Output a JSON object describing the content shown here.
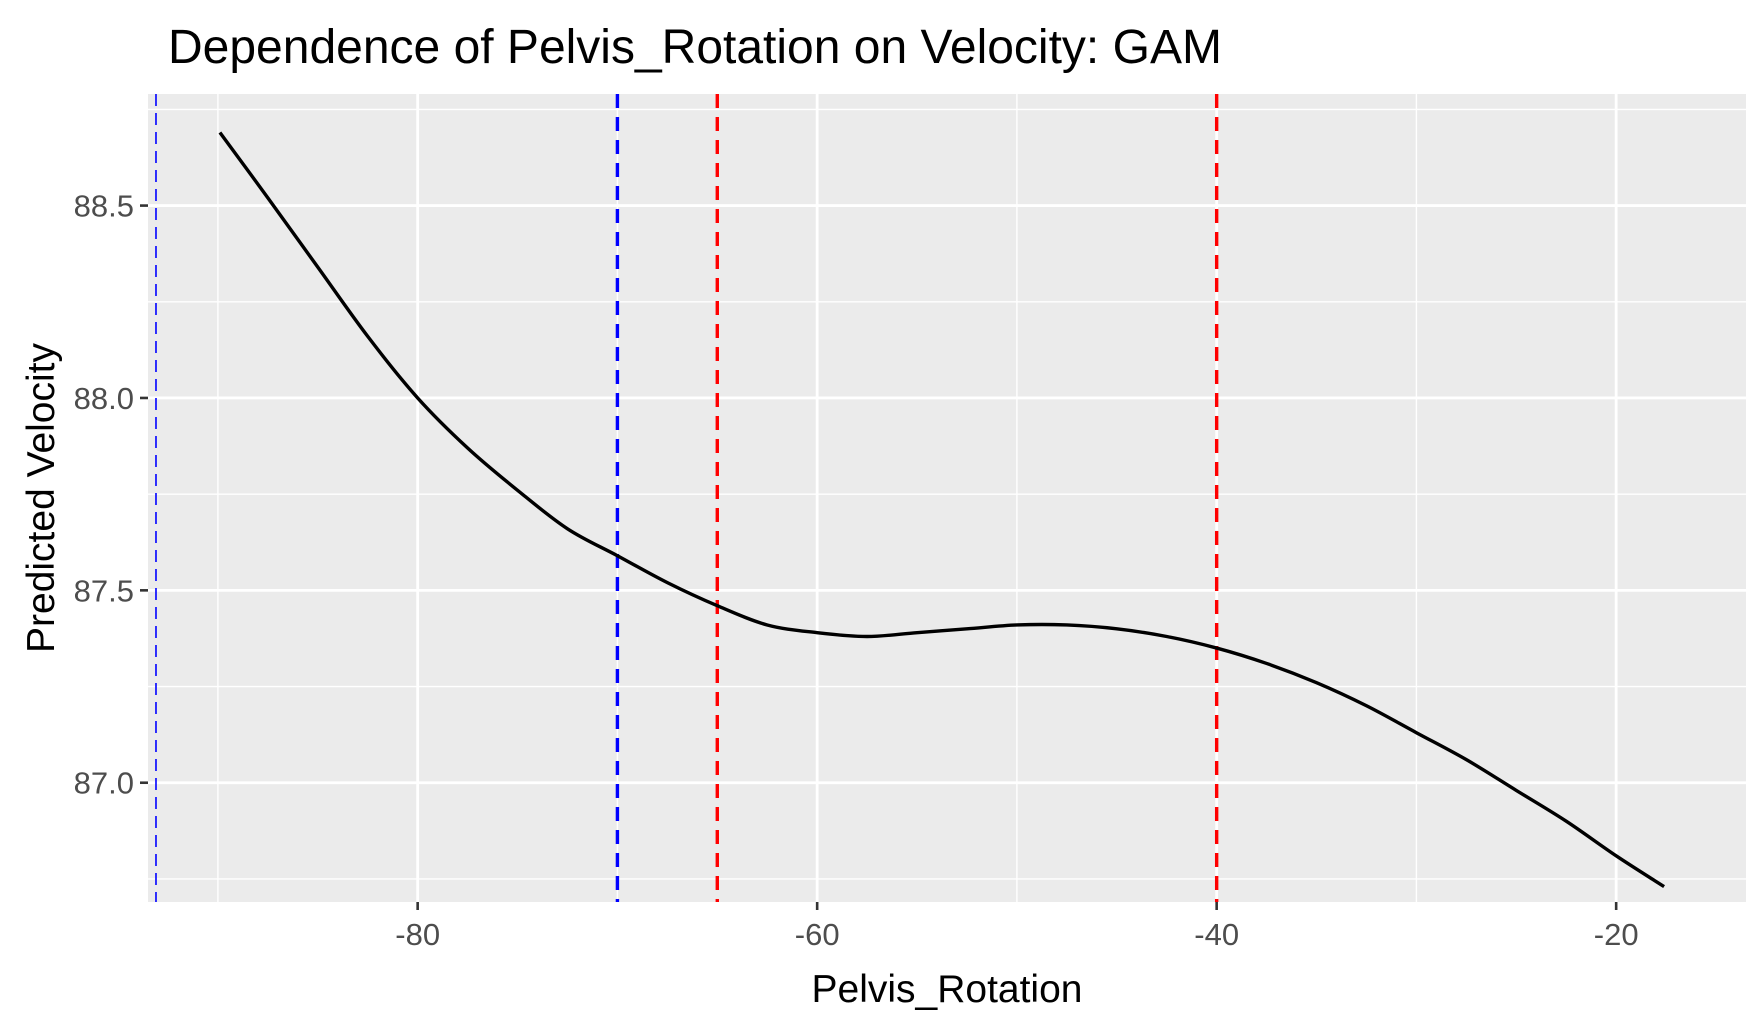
{
  "chart_data": {
    "type": "line",
    "title": "Dependence of Pelvis_Rotation on Velocity: GAM",
    "xlabel": "Pelvis_Rotation",
    "ylabel": "Predicted Velocity",
    "xlim": [
      -93.5,
      -13.5
    ],
    "ylim": [
      86.69,
      88.79
    ],
    "x_ticks": [
      -80,
      -60,
      -40,
      -20
    ],
    "x_tick_labels": [
      "-80",
      "-60",
      "-40",
      "-20"
    ],
    "x_minor_ticks": [
      -90,
      -70,
      -50,
      -30
    ],
    "y_ticks": [
      87.0,
      87.5,
      88.0,
      88.5
    ],
    "y_tick_labels": [
      "87.0",
      "87.5",
      "88.0",
      "88.5"
    ],
    "y_minor_ticks": [
      86.75,
      87.25,
      87.75,
      88.25,
      88.75
    ],
    "grid": true,
    "series": [
      {
        "color": "#000000",
        "x": [
          -89.9,
          -87.5,
          -85,
          -82.5,
          -80,
          -77.5,
          -75,
          -72.5,
          -70,
          -67.5,
          -65,
          -62.5,
          -60,
          -57.5,
          -55,
          -52.5,
          -50,
          -47.5,
          -45,
          -42.5,
          -40,
          -37.5,
          -35,
          -32.5,
          -30,
          -27.5,
          -25,
          -22.5,
          -20,
          -17.6
        ],
        "y": [
          88.69,
          88.52,
          88.34,
          88.16,
          88.0,
          87.87,
          87.76,
          87.66,
          87.59,
          87.52,
          87.46,
          87.41,
          87.39,
          87.38,
          87.39,
          87.4,
          87.41,
          87.41,
          87.4,
          87.38,
          87.35,
          87.31,
          87.26,
          87.2,
          87.13,
          87.06,
          86.98,
          86.9,
          86.81,
          86.73
        ]
      }
    ],
    "reference_lines": [
      {
        "x": -93.1,
        "color": "#0000ff",
        "style": "dashed",
        "weight": "thin"
      },
      {
        "x": -70.0,
        "color": "#0000ff",
        "style": "dashed",
        "weight": "bold"
      },
      {
        "x": -65.0,
        "color": "#ff0000",
        "style": "dashed",
        "weight": "bold"
      },
      {
        "x": -40.0,
        "color": "#ff0000",
        "style": "dashed",
        "weight": "bold"
      }
    ],
    "colors": {
      "panel_background": "#ebebeb",
      "grid_line": "#ffffff",
      "tick_mark": "#333333",
      "tick_label": "#4d4d4d"
    }
  }
}
